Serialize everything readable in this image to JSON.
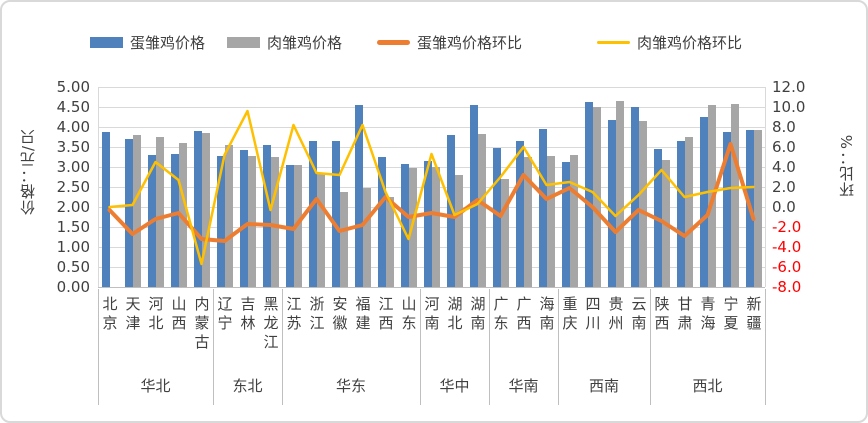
{
  "legend": [
    {
      "label": "蛋雏鸡价格",
      "type": "bar",
      "color": "#4F81BD"
    },
    {
      "label": "肉雏鸡价格",
      "type": "bar",
      "color": "#A6A6A6"
    },
    {
      "label": "蛋雏鸡价格环比",
      "type": "line",
      "color": "#ED7D31"
    },
    {
      "label": "肉雏鸡价格环比",
      "type": "line",
      "color": "#FFC000"
    }
  ],
  "left_axis": {
    "title": "价格：元/只",
    "ticks": [
      "5.00",
      "4.50",
      "4.00",
      "3.50",
      "3.00",
      "2.50",
      "2.00",
      "1.50",
      "1.00",
      "0.50",
      "0.00"
    ],
    "min": 0,
    "max": 5
  },
  "right_axis": {
    "title": "环比：%",
    "ticks": [
      "12.0",
      "10.0",
      "8.0",
      "6.0",
      "4.0",
      "2.0",
      "0.0",
      "-2.0",
      "-4.0",
      "-6.0",
      "-8.0"
    ],
    "min": -8,
    "max": 12,
    "negative_tick_color": "#FF0000",
    "tick_color": "#404040"
  },
  "chart_data": {
    "type": "bar",
    "subtype": "bar-line combo, dual axis",
    "categories": [
      "北京",
      "天津",
      "河北",
      "山西",
      "内蒙古",
      "辽宁",
      "吉林",
      "黑龙江",
      "江苏",
      "浙江",
      "安徽",
      "福建",
      "江西",
      "山东",
      "河南",
      "湖北",
      "湖南",
      "广东",
      "广西",
      "海南",
      "重庆",
      "四川",
      "贵州",
      "云南",
      "陕西",
      "甘肃",
      "青海",
      "宁夏",
      "新疆"
    ],
    "category_groups": [
      {
        "label": "华北",
        "count": 5
      },
      {
        "label": "东北",
        "count": 3
      },
      {
        "label": "华东",
        "count": 6
      },
      {
        "label": "华中",
        "count": 3
      },
      {
        "label": "华南",
        "count": 3
      },
      {
        "label": "西南",
        "count": 4
      },
      {
        "label": "西北",
        "count": 5
      }
    ],
    "series": [
      {
        "name": "蛋雏鸡价格",
        "type": "bar",
        "axis": "left",
        "color": "#4F81BD",
        "values": [
          3.88,
          3.7,
          3.3,
          3.33,
          3.9,
          3.28,
          3.42,
          3.56,
          3.05,
          3.65,
          3.65,
          4.55,
          3.25,
          3.08,
          3.15,
          3.8,
          4.55,
          3.48,
          3.65,
          3.95,
          3.13,
          4.62,
          4.18,
          4.5,
          3.46,
          3.65,
          4.24,
          3.88,
          3.92
        ]
      },
      {
        "name": "肉雏鸡价格",
        "type": "bar",
        "axis": "left",
        "color": "#A6A6A6",
        "values": [
          null,
          3.8,
          3.74,
          3.6,
          3.86,
          3.55,
          3.28,
          3.25,
          3.05,
          2.85,
          2.38,
          2.48,
          2.25,
          2.98,
          3.0,
          2.8,
          3.82,
          2.71,
          3.25,
          3.27,
          3.31,
          4.5,
          4.66,
          4.15,
          3.17,
          3.74,
          4.54,
          4.58,
          3.92
        ]
      },
      {
        "name": "蛋雏鸡价格环比",
        "type": "line",
        "axis": "right",
        "color": "#ED7D31",
        "values": [
          -0.3,
          -2.7,
          -1.2,
          -0.6,
          -3.2,
          -3.4,
          -1.7,
          -1.8,
          -2.2,
          0.8,
          -2.4,
          -1.8,
          1.0,
          -1.0,
          -0.6,
          -1.0,
          0.7,
          -0.9,
          3.2,
          0.8,
          1.9,
          0.0,
          -2.5,
          -0.3,
          -1.4,
          -2.9,
          -0.8,
          6.3,
          -1.2
        ]
      },
      {
        "name": "肉雏鸡价格环比",
        "type": "line",
        "axis": "right",
        "color": "#FFC000",
        "values": [
          0.0,
          0.2,
          4.5,
          2.7,
          -5.7,
          5.2,
          9.6,
          -0.3,
          8.2,
          3.4,
          3.2,
          8.2,
          1.5,
          -3.2,
          5.3,
          -0.8,
          0.3,
          3.0,
          6.0,
          2.2,
          2.5,
          1.5,
          -0.9,
          1.2,
          3.7,
          1.0,
          1.5,
          1.9,
          2.0
        ]
      }
    ],
    "ylim_left": [
      0,
      5
    ],
    "ylim_right": [
      -8,
      12
    ],
    "grid": "horizontal",
    "legend_position": "top",
    "gridline_color": "#D9D9D9",
    "axis_line_color": "#BFBFBF"
  }
}
